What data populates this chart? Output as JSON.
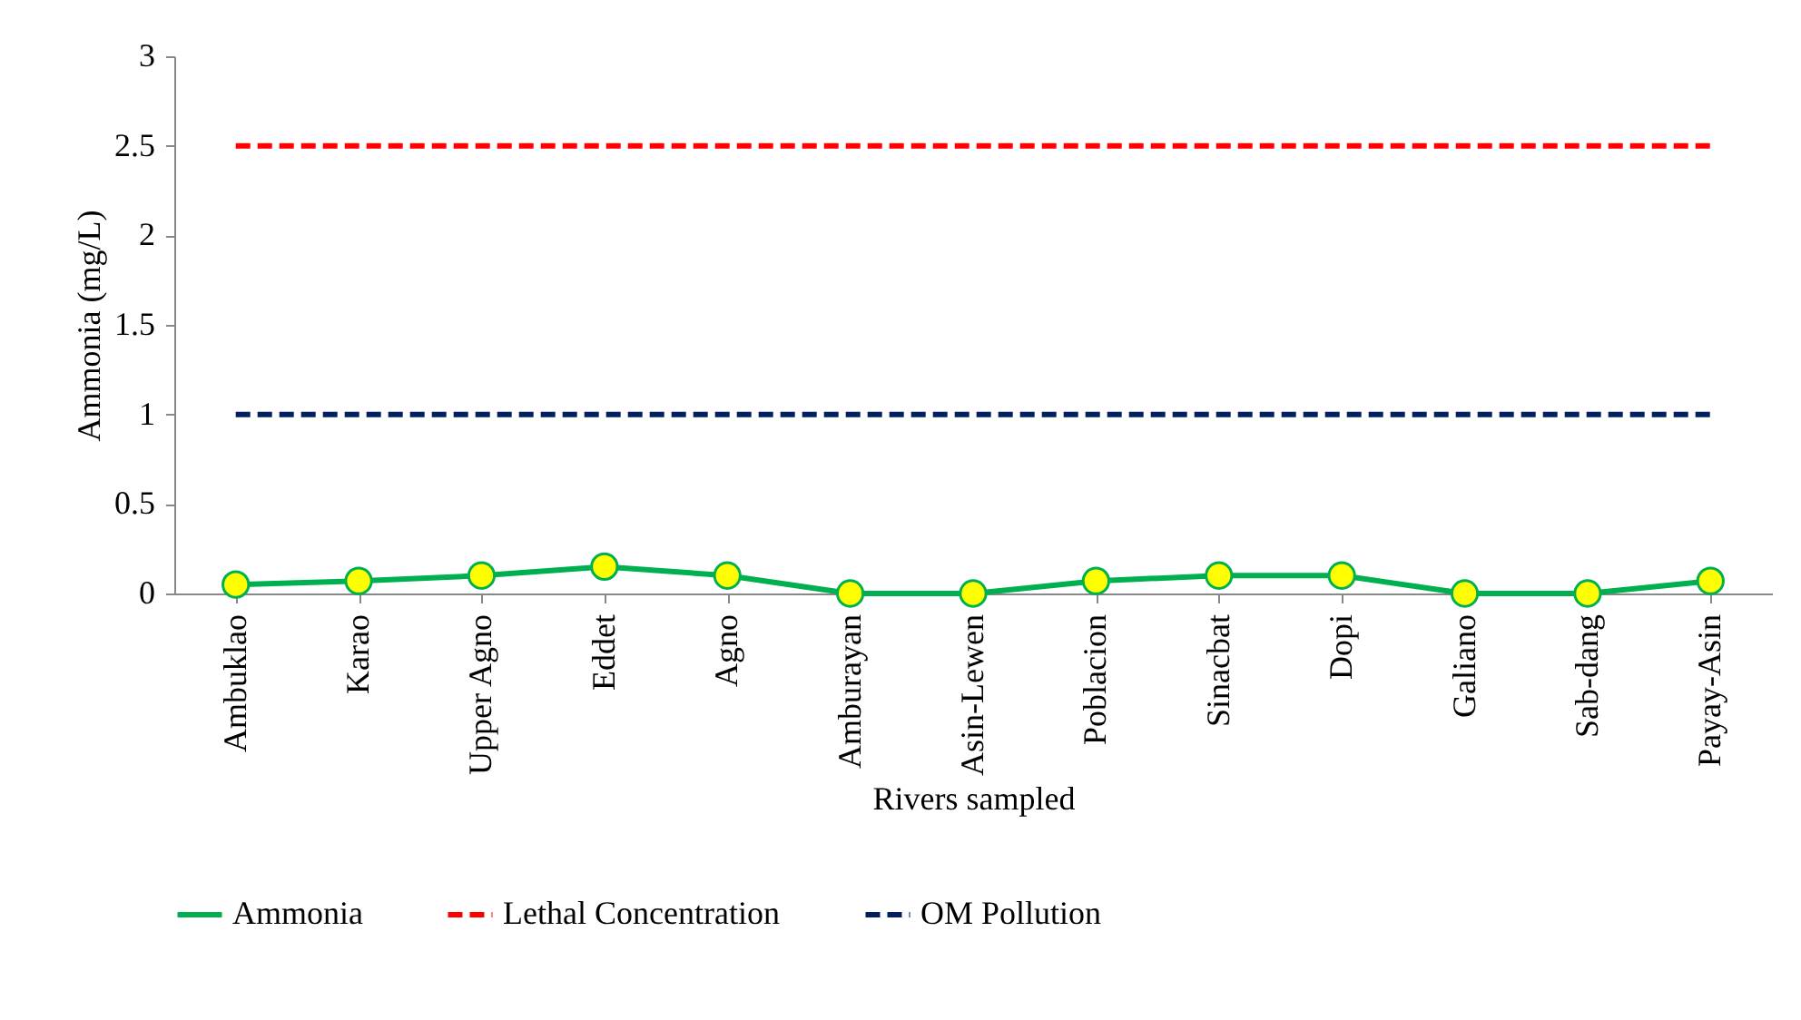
{
  "chart_data": {
    "type": "line",
    "xlabel": "Rivers sampled",
    "ylabel": "Ammonia (mg/L)",
    "categories": [
      "Ambuklao",
      "Karao",
      "Upper Agno",
      "Eddet",
      "Agno",
      "Amburayan",
      "Asin-Lewen",
      "Poblacion",
      "Sinacbat",
      "Dopi",
      "Galiano",
      "Sab-dang",
      "Payay-Asin"
    ],
    "series": [
      {
        "name": "Ammonia",
        "color": "#00b050",
        "marker": "circle",
        "line_style": "solid",
        "values": [
          0.05,
          0.07,
          0.1,
          0.15,
          0.1,
          0,
          0,
          0.07,
          0.1,
          0.1,
          0,
          0,
          0.07
        ]
      },
      {
        "name": "Lethal Concentration",
        "color": "#ff0000",
        "marker": "none",
        "line_style": "dashed",
        "values": [
          2.5,
          2.5,
          2.5,
          2.5,
          2.5,
          2.5,
          2.5,
          2.5,
          2.5,
          2.5,
          2.5,
          2.5,
          2.5
        ]
      },
      {
        "name": "OM Pollution",
        "color": "#002060",
        "marker": "none",
        "line_style": "dashed",
        "values": [
          1,
          1,
          1,
          1,
          1,
          1,
          1,
          1,
          1,
          1,
          1,
          1,
          1
        ]
      }
    ],
    "ylim": [
      0,
      3
    ],
    "yticks": [
      0,
      0.5,
      1,
      1.5,
      2,
      2.5,
      3
    ],
    "grid": false,
    "legend": "bottom"
  }
}
